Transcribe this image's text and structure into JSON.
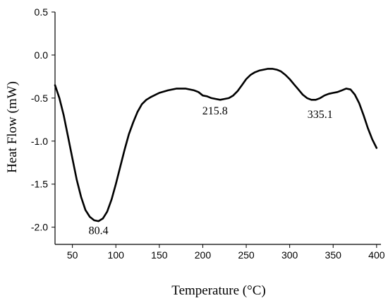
{
  "chart_data": {
    "type": "line",
    "xlabel": "Temperature (°C)",
    "ylabel": "Heat Flow (mW)",
    "xlim": [
      30,
      405
    ],
    "ylim": [
      -2.2,
      0.5
    ],
    "xticks": [
      50,
      100,
      150,
      200,
      250,
      300,
      350,
      400
    ],
    "yticks": [
      0.5,
      0.0,
      -0.5,
      -1.0,
      -1.5,
      -2.0
    ],
    "ytick_labels": [
      "0.5",
      "0.0",
      "-0.5",
      "-1.0",
      "-1.5",
      "-2.0"
    ],
    "grid": false,
    "series": [
      {
        "color": "#000000",
        "x": [
          30,
          35,
          40,
          45,
          50,
          55,
          60,
          65,
          70,
          75,
          80,
          85,
          90,
          95,
          100,
          105,
          110,
          115,
          120,
          125,
          130,
          135,
          140,
          150,
          160,
          170,
          180,
          190,
          195,
          200,
          205,
          210,
          215,
          220,
          225,
          230,
          235,
          240,
          245,
          250,
          255,
          260,
          265,
          270,
          275,
          280,
          285,
          290,
          295,
          300,
          305,
          310,
          315,
          320,
          325,
          330,
          335,
          340,
          345,
          350,
          355,
          360,
          365,
          370,
          375,
          380,
          385,
          390,
          395,
          400
        ],
        "y": [
          -0.35,
          -0.5,
          -0.7,
          -0.95,
          -1.2,
          -1.45,
          -1.65,
          -1.8,
          -1.88,
          -1.92,
          -1.93,
          -1.9,
          -1.82,
          -1.68,
          -1.5,
          -1.3,
          -1.1,
          -0.92,
          -0.78,
          -0.66,
          -0.57,
          -0.52,
          -0.49,
          -0.44,
          -0.41,
          -0.39,
          -0.39,
          -0.41,
          -0.43,
          -0.47,
          -0.48,
          -0.5,
          -0.51,
          -0.52,
          -0.51,
          -0.5,
          -0.47,
          -0.42,
          -0.35,
          -0.28,
          -0.23,
          -0.2,
          -0.18,
          -0.17,
          -0.16,
          -0.16,
          -0.17,
          -0.19,
          -0.23,
          -0.28,
          -0.34,
          -0.4,
          -0.46,
          -0.5,
          -0.52,
          -0.52,
          -0.5,
          -0.47,
          -0.45,
          -0.44,
          -0.43,
          -0.41,
          -0.39,
          -0.4,
          -0.46,
          -0.56,
          -0.7,
          -0.85,
          -0.98,
          -1.08
        ]
      }
    ],
    "annotations": [
      {
        "text": "80.4",
        "x": 80,
        "y": -2.08
      },
      {
        "text": "215.8",
        "x": 214,
        "y": -0.69
      },
      {
        "text": "335.1",
        "x": 335,
        "y": -0.73
      }
    ]
  }
}
